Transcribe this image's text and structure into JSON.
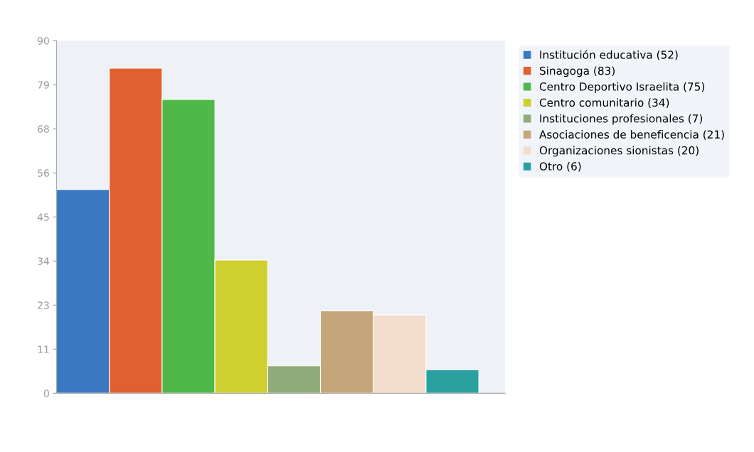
{
  "chart_data": {
    "type": "bar",
    "categories": [
      null,
      null,
      null,
      null,
      null,
      null,
      null,
      null
    ],
    "series": [
      {
        "name": "Institución educativa (52)",
        "color": "#3a78c3",
        "values": [
          52,
          null,
          null,
          null,
          null,
          null,
          null,
          null
        ]
      },
      {
        "name": "Sinagoga (83)",
        "color": "#e0602f",
        "values": [
          null,
          83,
          null,
          null,
          null,
          null,
          null,
          null
        ]
      },
      {
        "name": "Centro Deportivo Israelita (75)",
        "color": "#50b848",
        "values": [
          null,
          null,
          75,
          null,
          null,
          null,
          null,
          null
        ]
      },
      {
        "name": "Centro comunitario (34)",
        "color": "#cfcf30",
        "values": [
          null,
          null,
          null,
          34,
          null,
          null,
          null,
          null
        ]
      },
      {
        "name": "Instituciones profesionales (7)",
        "color": "#8fac7a",
        "values": [
          null,
          null,
          null,
          null,
          7,
          null,
          null,
          null
        ]
      },
      {
        "name": "Asociaciones de beneficencia (21)",
        "color": "#c4a67a",
        "values": [
          null,
          null,
          null,
          null,
          null,
          21,
          null,
          null
        ]
      },
      {
        "name": "Organizaciones sionistas (20)",
        "color": "#f3dccb",
        "values": [
          null,
          null,
          null,
          null,
          null,
          null,
          20,
          null
        ]
      },
      {
        "name": "Otro (6)",
        "color": "#2aa0a0",
        "values": [
          null,
          null,
          null,
          null,
          null,
          null,
          null,
          6
        ]
      }
    ],
    "ylim": [
      0,
      90
    ],
    "yticks": [
      0,
      {
        "value": 11.25,
        "label": "11"
      },
      {
        "value": 22.5,
        "label": "23"
      },
      {
        "value": 33.75,
        "label": "34"
      },
      45,
      {
        "value": 56.25,
        "label": "56"
      },
      {
        "value": 67.5,
        "label": "68"
      },
      {
        "value": 78.75,
        "label": "79"
      },
      90
    ],
    "grid": false,
    "legend": "right"
  }
}
